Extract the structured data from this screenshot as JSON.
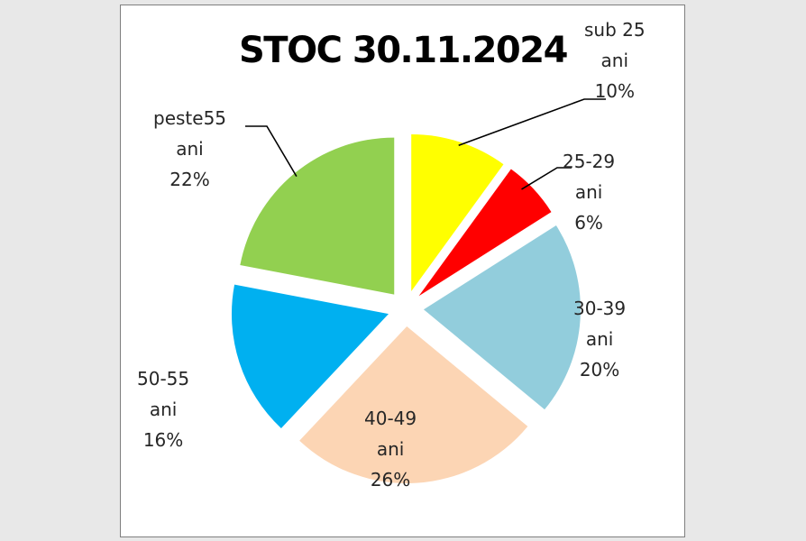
{
  "chart_data": {
    "type": "pie",
    "title": "STOC 30.11.2024",
    "exploded": true,
    "slices": [
      {
        "line1": "sub 25",
        "line2": "ani",
        "pct_label": "10%",
        "value": 10,
        "color": "#ffff00"
      },
      {
        "line1": "25-29",
        "line2": "ani",
        "pct_label": "6%",
        "value": 6,
        "color": "#ff0000"
      },
      {
        "line1": "30-39",
        "line2": "ani",
        "pct_label": "20%",
        "value": 20,
        "color": "#92cddc"
      },
      {
        "line1": "40-49",
        "line2": "ani",
        "pct_label": "26%",
        "value": 26,
        "color": "#fcd5b4"
      },
      {
        "line1": "50-55",
        "line2": "ani",
        "pct_label": "16%",
        "value": 16,
        "color": "#00b0f0"
      },
      {
        "line1": "peste55",
        "line2": "ani",
        "pct_label": "22%",
        "value": 22,
        "color": "#92d050"
      }
    ]
  }
}
